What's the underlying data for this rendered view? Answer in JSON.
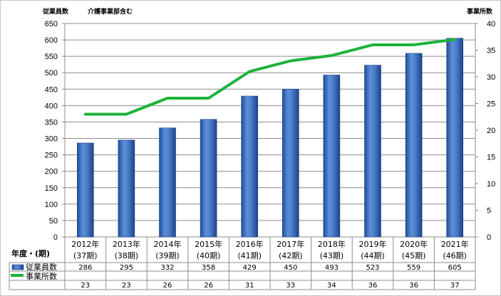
{
  "chart_data": {
    "type": "bar",
    "y_left_label": "従業員数",
    "note": "介護事業部含む",
    "y_right_label": "事業所数",
    "table_header": "年度・(期)",
    "categories": [
      [
        "2012年",
        "(37期)"
      ],
      [
        "2013年",
        "(38期)"
      ],
      [
        "2014年",
        "(39期)"
      ],
      [
        "2015年",
        "(40期)"
      ],
      [
        "2016年",
        "(41期)"
      ],
      [
        "2017年",
        "(42期)"
      ],
      [
        "2018年",
        "(43期)"
      ],
      [
        "2019年",
        "(44期)"
      ],
      [
        "2020年",
        "(45期)"
      ],
      [
        "2021年",
        "(46期)"
      ]
    ],
    "ylim_left": [
      0,
      650
    ],
    "ylim_right": [
      0,
      40
    ],
    "left_ticks": [
      0,
      50,
      100,
      150,
      200,
      250,
      300,
      350,
      400,
      450,
      500,
      550,
      600,
      650
    ],
    "right_ticks": [
      0,
      5,
      10,
      15,
      20,
      25,
      30,
      35,
      40
    ],
    "grid": true,
    "legend_placement": "data-table",
    "series": [
      {
        "name": "従業員数",
        "type": "bar",
        "axis": "left",
        "color": "#3d6fc0",
        "values": [
          286,
          295,
          332,
          358,
          429,
          450,
          493,
          523,
          559,
          605
        ]
      },
      {
        "name": "事業所数",
        "type": "line",
        "axis": "right",
        "color": "#1db33a",
        "values": [
          23,
          23,
          26,
          26,
          31,
          33,
          34,
          36,
          36,
          37
        ]
      }
    ]
  }
}
